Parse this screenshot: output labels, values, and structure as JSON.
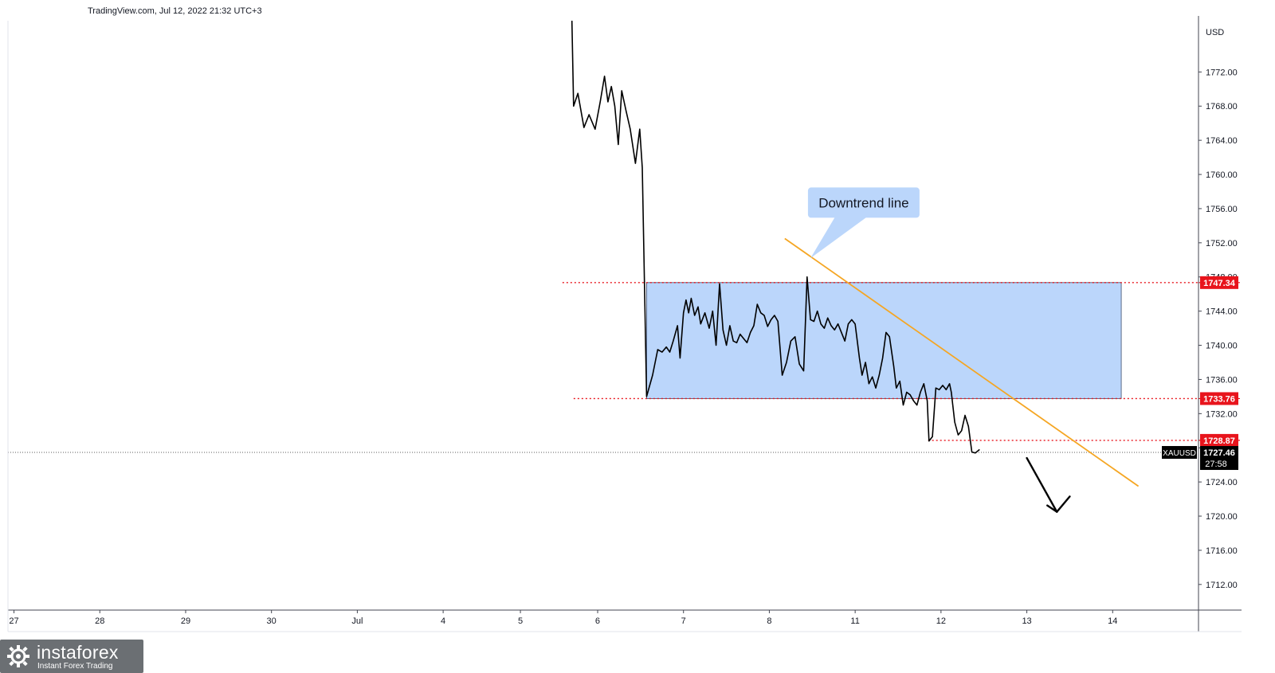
{
  "header": {
    "attribution": "TradingView.com, Jul 12, 2022 21:32 UTC+3"
  },
  "watermark": {
    "brand": "instaforex",
    "tagline": "Instant Forex Trading"
  },
  "colors": {
    "price_line": "#000000",
    "trendline": "#f5a623",
    "range_fill": "#bbd6fb",
    "level_red": "#e8141c",
    "grid": "#e0e3eb",
    "axis_text": "#131722"
  },
  "chart_data": {
    "type": "line",
    "symbol": "XAUUSD",
    "currency": "USD",
    "ylim": [
      1709,
      1778
    ],
    "y_ticks": [
      1712,
      1716,
      1720,
      1724,
      1728,
      1732,
      1736,
      1740,
      1744,
      1748,
      1752,
      1756,
      1760,
      1764,
      1768,
      1772
    ],
    "x_ticks": [
      {
        "label": "27",
        "pos": 0.0
      },
      {
        "label": "28",
        "pos": 1.0
      },
      {
        "label": "29",
        "pos": 2.0
      },
      {
        "label": "30",
        "pos": 3.0
      },
      {
        "label": "Jul",
        "pos": 4.0
      },
      {
        "label": "4",
        "pos": 5.0
      },
      {
        "label": "5",
        "pos": 5.9
      },
      {
        "label": "6",
        "pos": 6.8
      },
      {
        "label": "7",
        "pos": 7.8
      },
      {
        "label": "8",
        "pos": 8.8
      },
      {
        "label": "11",
        "pos": 9.8
      },
      {
        "label": "12",
        "pos": 10.8
      },
      {
        "label": "13",
        "pos": 11.8
      },
      {
        "label": "14",
        "pos": 12.8
      }
    ],
    "xlim": [
      -0.07,
      13.8
    ],
    "series": [
      {
        "values": [
          [
            6.5,
            1778.0
          ],
          [
            6.52,
            1768.0
          ],
          [
            6.57,
            1769.5
          ],
          [
            6.64,
            1765.5
          ],
          [
            6.7,
            1767.0
          ],
          [
            6.77,
            1765.3
          ],
          [
            6.83,
            1768.5
          ],
          [
            6.88,
            1771.5
          ],
          [
            6.92,
            1768.5
          ],
          [
            6.96,
            1770.3
          ],
          [
            7.0,
            1768.0
          ],
          [
            7.04,
            1763.5
          ],
          [
            7.08,
            1769.8
          ],
          [
            7.13,
            1767.5
          ],
          [
            7.18,
            1765.3
          ],
          [
            7.24,
            1761.3
          ],
          [
            7.29,
            1765.3
          ],
          [
            7.32,
            1760.8
          ],
          [
            7.37,
            1734.0
          ],
          [
            7.44,
            1736.5
          ],
          [
            7.5,
            1739.5
          ],
          [
            7.55,
            1739.2
          ],
          [
            7.6,
            1739.8
          ],
          [
            7.64,
            1739.2
          ],
          [
            7.68,
            1740.5
          ],
          [
            7.73,
            1742.3
          ],
          [
            7.76,
            1738.5
          ],
          [
            7.8,
            1743.8
          ],
          [
            7.83,
            1745.3
          ],
          [
            7.86,
            1743.8
          ],
          [
            7.89,
            1745.5
          ],
          [
            7.93,
            1743.5
          ],
          [
            7.97,
            1744.5
          ],
          [
            8.0,
            1742.5
          ],
          [
            8.05,
            1743.8
          ],
          [
            8.1,
            1742.0
          ],
          [
            8.14,
            1744.0
          ],
          [
            8.18,
            1740.0
          ],
          [
            8.22,
            1747.2
          ],
          [
            8.26,
            1741.8
          ],
          [
            8.3,
            1740.0
          ],
          [
            8.34,
            1742.3
          ],
          [
            8.38,
            1740.5
          ],
          [
            8.42,
            1740.3
          ],
          [
            8.46,
            1741.3
          ],
          [
            8.5,
            1740.8
          ],
          [
            8.54,
            1740.3
          ],
          [
            8.58,
            1741.5
          ],
          [
            8.62,
            1742.3
          ],
          [
            8.66,
            1744.8
          ],
          [
            8.7,
            1743.8
          ],
          [
            8.74,
            1743.5
          ],
          [
            8.78,
            1742.2
          ],
          [
            8.82,
            1743.0
          ],
          [
            8.86,
            1743.5
          ],
          [
            8.9,
            1742.8
          ],
          [
            8.95,
            1736.5
          ],
          [
            9.0,
            1738.0
          ],
          [
            9.05,
            1740.5
          ],
          [
            9.1,
            1741.0
          ],
          [
            9.15,
            1737.8
          ],
          [
            9.2,
            1737.0
          ],
          [
            9.24,
            1748.0
          ],
          [
            9.28,
            1743.0
          ],
          [
            9.32,
            1742.8
          ],
          [
            9.36,
            1744.0
          ],
          [
            9.4,
            1742.5
          ],
          [
            9.44,
            1742.0
          ],
          [
            9.48,
            1743.2
          ],
          [
            9.52,
            1742.3
          ],
          [
            9.56,
            1741.8
          ],
          [
            9.6,
            1742.5
          ],
          [
            9.64,
            1741.5
          ],
          [
            9.68,
            1740.5
          ],
          [
            9.72,
            1742.5
          ],
          [
            9.76,
            1743.0
          ],
          [
            9.8,
            1742.5
          ],
          [
            9.85,
            1738.5
          ],
          [
            9.88,
            1736.5
          ],
          [
            9.92,
            1738.0
          ],
          [
            9.96,
            1735.5
          ],
          [
            10.0,
            1736.3
          ],
          [
            10.04,
            1735.0
          ],
          [
            10.08,
            1736.5
          ],
          [
            10.12,
            1738.5
          ],
          [
            10.16,
            1741.5
          ],
          [
            10.2,
            1741.0
          ],
          [
            10.25,
            1737.5
          ],
          [
            10.28,
            1735.0
          ],
          [
            10.32,
            1735.8
          ],
          [
            10.36,
            1733.0
          ],
          [
            10.4,
            1734.5
          ],
          [
            10.44,
            1734.2
          ],
          [
            10.48,
            1733.5
          ],
          [
            10.52,
            1733.0
          ],
          [
            10.56,
            1734.5
          ],
          [
            10.6,
            1735.5
          ],
          [
            10.64,
            1733.5
          ],
          [
            10.66,
            1728.8
          ],
          [
            10.7,
            1729.3
          ],
          [
            10.74,
            1735.0
          ],
          [
            10.78,
            1734.8
          ],
          [
            10.82,
            1735.3
          ],
          [
            10.86,
            1734.8
          ],
          [
            10.9,
            1735.5
          ],
          [
            10.92,
            1734.5
          ],
          [
            10.96,
            1731.0
          ],
          [
            11.0,
            1729.5
          ],
          [
            11.04,
            1730.0
          ],
          [
            11.08,
            1731.8
          ],
          [
            11.12,
            1730.5
          ],
          [
            11.16,
            1727.5
          ],
          [
            11.2,
            1727.4
          ],
          [
            11.25,
            1727.8
          ]
        ]
      }
    ],
    "range_box": {
      "x_start": 7.37,
      "x_end": 12.9,
      "y_low": 1733.76,
      "y_high": 1747.34
    },
    "levels": [
      {
        "value": 1747.34,
        "label": "1747.34",
        "x_start": 6.39
      },
      {
        "value": 1733.76,
        "label": "1733.76",
        "x_start": 6.52
      },
      {
        "value": 1728.87,
        "label": "1728.87",
        "x_start": 10.65
      }
    ],
    "current_price": {
      "value": 1727.46,
      "label": "1727.46",
      "symbol_label": "XAUUSD",
      "countdown": "27:58"
    },
    "trendline": {
      "x1": 8.98,
      "y1": 1752.5,
      "x2": 13.1,
      "y2": 1723.5
    },
    "arrow": {
      "x1": 11.8,
      "y1": 1726.8,
      "x2": 12.15,
      "y2": 1720.5,
      "head_to": [
        12.3,
        1722.3
      ]
    },
    "annotation": {
      "text": "Downtrend line",
      "box_center": [
        9.9,
        1756.7
      ],
      "pointer_to": [
        9.28,
        1750.2
      ]
    }
  }
}
